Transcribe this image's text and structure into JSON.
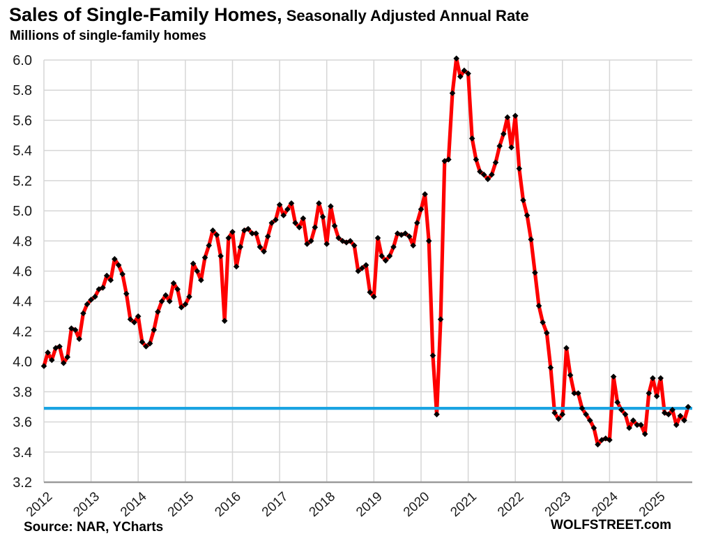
{
  "header": {
    "title_main": "Sales of Single-Family Homes,",
    "title_rest": " Seasonally Adjusted Annual Rate",
    "subtitle": "Millions of single-family homes"
  },
  "footer": {
    "source": "Source: NAR, YCharts",
    "watermark": "WOLFSTREET.com"
  },
  "chart_data": {
    "type": "line",
    "title": "Sales of Single-Family Homes, Seasonally Adjusted Annual Rate",
    "ylabel": "Millions of single-family homes",
    "frequency": "monthly",
    "x_start": "2012-01",
    "x_end": "2025-09",
    "ylim": [
      3.2,
      6.0
    ],
    "grid": true,
    "y_tick_labels": [
      "6.0",
      "5.8",
      "5.6",
      "5.4",
      "5.2",
      "5.0",
      "4.8",
      "4.6",
      "4.4",
      "4.2",
      "4.0",
      "3.8",
      "3.6",
      "3.4",
      "3.2"
    ],
    "x_tick_labels": [
      "2012",
      "2013",
      "2014",
      "2015",
      "2016",
      "2017",
      "2018",
      "2019",
      "2020",
      "2021",
      "2022",
      "2023",
      "2024",
      "2025"
    ],
    "reference_line": {
      "value": 3.69,
      "color": "#1ba4e2"
    },
    "colors": {
      "grid": "#d6d6d6",
      "axis": "#9a9a9a",
      "text": "#1a1a1a"
    },
    "series": [
      {
        "name": "Single-family home sales, SAAR (millions)",
        "color": "#fe0000",
        "marker_color": "#000000",
        "values": [
          3.97,
          4.06,
          4.01,
          4.09,
          4.1,
          3.99,
          4.03,
          4.22,
          4.21,
          4.15,
          4.32,
          4.38,
          4.41,
          4.43,
          4.48,
          4.49,
          4.57,
          4.54,
          4.68,
          4.64,
          4.58,
          4.45,
          4.28,
          4.26,
          4.3,
          4.13,
          4.1,
          4.12,
          4.21,
          4.33,
          4.4,
          4.44,
          4.4,
          4.52,
          4.48,
          4.36,
          4.38,
          4.43,
          4.65,
          4.6,
          4.54,
          4.69,
          4.77,
          4.87,
          4.84,
          4.7,
          4.27,
          4.82,
          4.86,
          4.63,
          4.76,
          4.87,
          4.88,
          4.85,
          4.85,
          4.76,
          4.73,
          4.83,
          4.92,
          4.94,
          5.04,
          4.97,
          5.01,
          5.05,
          4.92,
          4.89,
          4.95,
          4.78,
          4.8,
          4.89,
          5.05,
          4.96,
          4.78,
          5.03,
          4.9,
          4.82,
          4.8,
          4.79,
          4.8,
          4.77,
          4.6,
          4.62,
          4.64,
          4.46,
          4.43,
          4.82,
          4.7,
          4.67,
          4.7,
          4.76,
          4.85,
          4.84,
          4.85,
          4.83,
          4.77,
          4.92,
          5.01,
          5.11,
          4.8,
          4.04,
          3.65,
          4.28,
          5.33,
          5.34,
          5.78,
          6.01,
          5.89,
          5.93,
          5.91,
          5.48,
          5.34,
          5.26,
          5.24,
          5.21,
          5.24,
          5.32,
          5.43,
          5.51,
          5.62,
          5.42,
          5.63,
          5.28,
          5.07,
          4.97,
          4.81,
          4.59,
          4.37,
          4.26,
          4.19,
          3.96,
          3.66,
          3.62,
          3.65,
          4.09,
          3.91,
          3.79,
          3.79,
          3.69,
          3.65,
          3.61,
          3.56,
          3.45,
          3.48,
          3.49,
          3.48,
          3.9,
          3.73,
          3.68,
          3.65,
          3.56,
          3.61,
          3.58,
          3.58,
          3.52,
          3.79,
          3.89,
          3.77,
          3.89,
          3.66,
          3.65,
          3.68,
          3.58,
          3.64,
          3.61,
          3.7
        ]
      }
    ]
  }
}
